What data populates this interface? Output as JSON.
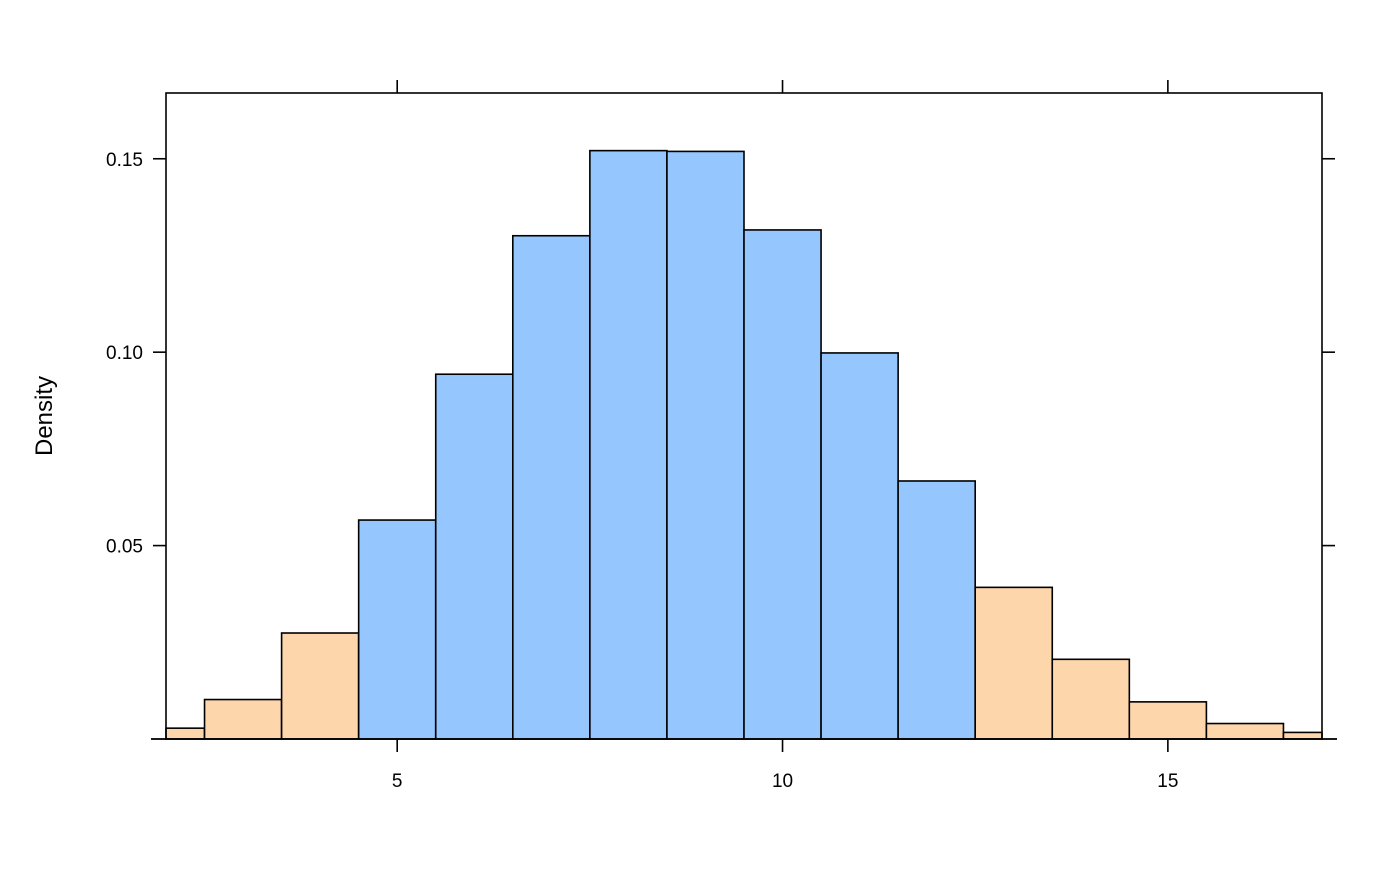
{
  "chart_data": {
    "type": "bar",
    "subtype": "histogram",
    "title": "",
    "xlabel": "",
    "ylabel": "Density",
    "xlim": [
      2,
      17
    ],
    "ylim": [
      0,
      0.167
    ],
    "x_ticks": [
      5,
      10,
      15
    ],
    "x_tick_labels": [
      "5",
      "10",
      "15"
    ],
    "y_ticks": [
      0.05,
      0.1,
      0.15
    ],
    "y_tick_labels": [
      "0.05",
      "0.10",
      "0.15"
    ],
    "grid": false,
    "legend": "none",
    "colors": {
      "highlight": "#96c6fe",
      "tail": "#fed6ac",
      "outline": "#000000"
    },
    "bins": [
      {
        "x0": 2,
        "x1": 2.5,
        "density": 0.0028,
        "group": "tail"
      },
      {
        "x0": 2.5,
        "x1": 3.5,
        "density": 0.0102,
        "group": "tail"
      },
      {
        "x0": 3.5,
        "x1": 4.5,
        "density": 0.0274,
        "group": "tail"
      },
      {
        "x0": 4.5,
        "x1": 5.5,
        "density": 0.0566,
        "group": "highlight"
      },
      {
        "x0": 5.5,
        "x1": 6.5,
        "density": 0.0943,
        "group": "highlight"
      },
      {
        "x0": 6.5,
        "x1": 7.5,
        "density": 0.1301,
        "group": "highlight"
      },
      {
        "x0": 7.5,
        "x1": 8.5,
        "density": 0.1521,
        "group": "highlight"
      },
      {
        "x0": 8.5,
        "x1": 9.5,
        "density": 0.1519,
        "group": "highlight"
      },
      {
        "x0": 9.5,
        "x1": 10.5,
        "density": 0.1316,
        "group": "highlight"
      },
      {
        "x0": 10.5,
        "x1": 11.5,
        "density": 0.0998,
        "group": "highlight"
      },
      {
        "x0": 11.5,
        "x1": 12.5,
        "density": 0.0667,
        "group": "highlight"
      },
      {
        "x0": 12.5,
        "x1": 13.5,
        "density": 0.0392,
        "group": "tail"
      },
      {
        "x0": 13.5,
        "x1": 14.5,
        "density": 0.0206,
        "group": "tail"
      },
      {
        "x0": 14.5,
        "x1": 15.5,
        "density": 0.0096,
        "group": "tail"
      },
      {
        "x0": 15.5,
        "x1": 16.5,
        "density": 0.004,
        "group": "tail"
      },
      {
        "x0": 16.5,
        "x1": 17,
        "density": 0.0017,
        "group": "tail"
      }
    ]
  }
}
